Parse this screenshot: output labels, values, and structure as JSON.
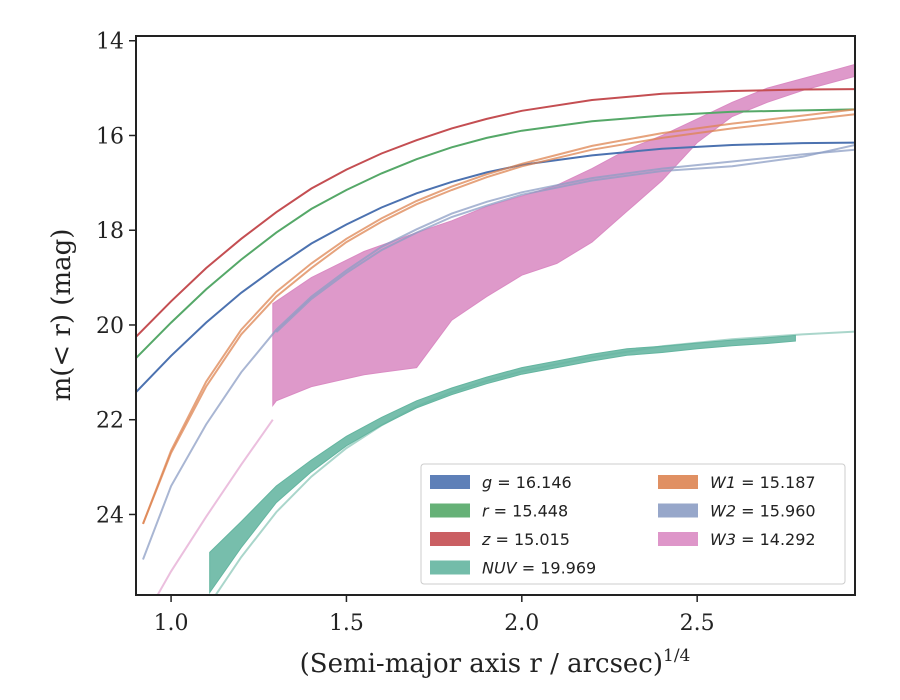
{
  "chart_data": {
    "type": "line",
    "title": "",
    "xlabel": "(Semi-major axis r / arcsec)",
    "xlabel_sup": "1/4",
    "ylabel": "m(< r) (mag)",
    "xlim": [
      0.9,
      2.95
    ],
    "ylim": [
      25.7,
      13.9
    ],
    "y_inverted": true,
    "grid": false,
    "legend_position": "lower-right",
    "xticks": [
      1.0,
      1.5,
      2.0,
      2.5
    ],
    "xtick_labels": [
      "1.0",
      "1.5",
      "2.0",
      "2.5"
    ],
    "yticks": [
      14,
      16,
      18,
      20,
      22,
      24
    ],
    "ytick_labels": [
      "14",
      "16",
      "18",
      "20",
      "22",
      "24"
    ],
    "series": [
      {
        "name": "g = 16.146",
        "legend_italic": "g",
        "legend_value": "16.146",
        "color": "#4c72b0",
        "band_lines": [
          {
            "x": [
              0.9,
              1.0,
              1.1,
              1.2,
              1.3,
              1.4,
              1.5,
              1.6,
              1.7,
              1.8,
              1.9,
              2.0,
              2.2,
              2.4,
              2.6,
              2.8,
              2.95
            ],
            "y": [
              21.42,
              20.65,
              19.95,
              19.32,
              18.78,
              18.28,
              17.88,
              17.52,
              17.22,
              16.98,
              16.78,
              16.62,
              16.42,
              16.28,
              16.2,
              16.16,
              16.15
            ]
          }
        ]
      },
      {
        "name": "r = 15.448",
        "legend_italic": "r",
        "legend_value": "15.448",
        "color": "#55a868",
        "band_lines": [
          {
            "x": [
              0.9,
              1.0,
              1.1,
              1.2,
              1.3,
              1.4,
              1.5,
              1.6,
              1.7,
              1.8,
              1.9,
              2.0,
              2.2,
              2.4,
              2.6,
              2.8,
              2.95
            ],
            "y": [
              20.7,
              19.95,
              19.25,
              18.62,
              18.05,
              17.55,
              17.15,
              16.8,
              16.5,
              16.25,
              16.05,
              15.9,
              15.7,
              15.58,
              15.5,
              15.47,
              15.45
            ]
          }
        ]
      },
      {
        "name": "z = 15.015",
        "legend_italic": "z",
        "legend_value": "15.015",
        "color": "#c44e52",
        "band_lines": [
          {
            "x": [
              0.9,
              1.0,
              1.1,
              1.2,
              1.3,
              1.4,
              1.5,
              1.6,
              1.7,
              1.8,
              1.9,
              2.0,
              2.2,
              2.4,
              2.6,
              2.8,
              2.95
            ],
            "y": [
              20.25,
              19.5,
              18.8,
              18.18,
              17.62,
              17.12,
              16.72,
              16.38,
              16.1,
              15.85,
              15.65,
              15.48,
              15.25,
              15.12,
              15.06,
              15.03,
              15.02
            ]
          }
        ]
      },
      {
        "name": "NUV = 19.969",
        "legend_italic": "NUV",
        "legend_value": "19.969",
        "color": "#64b5a0",
        "extension": {
          "x": [
            0.9,
            1.0,
            1.1,
            1.2,
            1.3,
            1.4,
            1.5,
            1.6,
            1.7,
            1.8,
            1.9,
            2.0,
            2.2,
            2.4,
            2.6,
            2.8,
            2.95
          ],
          "y": [
            28.5,
            27.2,
            26.0,
            24.9,
            23.95,
            23.2,
            22.6,
            22.12,
            21.72,
            21.42,
            21.18,
            20.98,
            20.68,
            20.45,
            20.3,
            20.2,
            20.14
          ]
        },
        "band_x": [
          1.11,
          1.2,
          1.3,
          1.4,
          1.5,
          1.6,
          1.7,
          1.8,
          1.9,
          2.0,
          2.1,
          2.2,
          2.3,
          2.4,
          2.5,
          2.6,
          2.7,
          2.78
        ],
        "band_upper": [
          24.8,
          24.15,
          23.4,
          22.85,
          22.35,
          21.95,
          21.6,
          21.33,
          21.1,
          20.9,
          20.76,
          20.62,
          20.5,
          20.45,
          20.38,
          20.32,
          20.27,
          20.22
        ],
        "band_lower": [
          25.65,
          24.7,
          23.75,
          23.1,
          22.55,
          22.12,
          21.75,
          21.47,
          21.24,
          21.04,
          20.9,
          20.76,
          20.64,
          20.58,
          20.5,
          20.44,
          20.39,
          20.34
        ]
      },
      {
        "name": "W1 = 15.187",
        "legend_italic": "W1",
        "legend_value": "15.187",
        "color": "#dd8452",
        "band_lines": [
          {
            "x": [
              0.92,
              1.0,
              1.1,
              1.2,
              1.3,
              1.4,
              1.5,
              1.6,
              1.7,
              1.8,
              1.9,
              2.0,
              2.2,
              2.4,
              2.6,
              2.8,
              2.95
            ],
            "y": [
              24.2,
              22.7,
              21.3,
              20.2,
              19.4,
              18.8,
              18.25,
              17.82,
              17.45,
              17.15,
              16.88,
              16.65,
              16.3,
              16.05,
              15.85,
              15.68,
              15.55
            ]
          },
          {
            "x": [
              0.92,
              1.0,
              1.1,
              1.2,
              1.3,
              1.4,
              1.5,
              1.6,
              1.7,
              1.8,
              1.9,
              2.0,
              2.2,
              2.4,
              2.6,
              2.8,
              2.95
            ],
            "y": [
              24.2,
              22.65,
              21.2,
              20.1,
              19.3,
              18.7,
              18.18,
              17.75,
              17.38,
              17.08,
              16.82,
              16.6,
              16.22,
              15.95,
              15.75,
              15.58,
              15.45
            ]
          }
        ]
      },
      {
        "name": "W2 = 15.960",
        "legend_italic": "W2",
        "legend_value": "15.960",
        "color": "#8c9dc4",
        "band_lines": [
          {
            "x": [
              0.92,
              1.0,
              1.1,
              1.2,
              1.3,
              1.4,
              1.5,
              1.6,
              1.7,
              1.8,
              1.9,
              2.0,
              2.2,
              2.4,
              2.6,
              2.8,
              2.95
            ],
            "y": [
              24.95,
              23.4,
              22.1,
              21.0,
              20.1,
              19.4,
              18.85,
              18.35,
              17.98,
              17.65,
              17.4,
              17.2,
              16.9,
              16.7,
              16.55,
              16.4,
              16.3
            ]
          },
          {
            "x": [
              1.3,
              1.4,
              1.5,
              1.6,
              1.7,
              1.8,
              1.9,
              2.0,
              2.2,
              2.4,
              2.6,
              2.8,
              2.95
            ],
            "y": [
              20.15,
              19.45,
              18.9,
              18.42,
              18.05,
              17.72,
              17.48,
              17.25,
              16.95,
              16.75,
              16.65,
              16.45,
              16.2
            ]
          }
        ]
      },
      {
        "name": "W3 = 14.292",
        "legend_italic": "W3",
        "legend_value": "14.292",
        "color": "#da8bc3",
        "extension": {
          "x": [
            0.9,
            1.0,
            1.1,
            1.2,
            1.29
          ],
          "y": [
            26.5,
            25.2,
            24.05,
            22.95,
            22.0
          ]
        },
        "band_x": [
          1.29,
          1.3,
          1.4,
          1.55,
          1.7,
          1.8,
          1.9,
          2.0,
          2.1,
          2.2,
          2.3,
          2.4,
          2.5,
          2.6,
          2.7,
          2.8,
          2.9,
          2.95
        ],
        "band_upper": [
          19.55,
          19.5,
          19.0,
          18.45,
          18.05,
          17.8,
          17.5,
          17.28,
          17.05,
          16.7,
          16.3,
          16.0,
          15.65,
          15.3,
          15.0,
          14.8,
          14.6,
          14.5
        ],
        "band_lower": [
          21.7,
          21.6,
          21.3,
          21.05,
          20.9,
          19.9,
          19.4,
          18.95,
          18.7,
          18.25,
          17.6,
          16.95,
          16.15,
          15.6,
          15.3,
          15.05,
          14.85,
          14.75
        ]
      }
    ]
  }
}
